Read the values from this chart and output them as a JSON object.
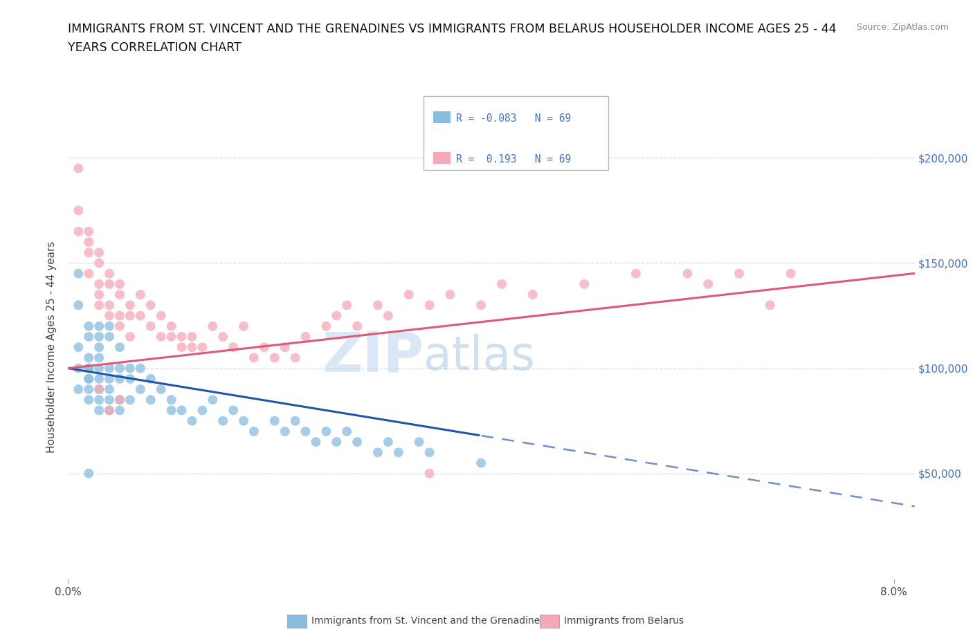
{
  "title_line1": "IMMIGRANTS FROM ST. VINCENT AND THE GRENADINES VS IMMIGRANTS FROM BELARUS HOUSEHOLDER INCOME AGES 25 - 44",
  "title_line2": "YEARS CORRELATION CHART",
  "source_text": "Source: ZipAtlas.com",
  "ylabel": "Householder Income Ages 25 - 44 years",
  "xlim": [
    0.0,
    0.082
  ],
  "ylim": [
    0,
    220000
  ],
  "x_ticks": [
    0.0,
    0.08
  ],
  "x_tick_labels": [
    "0.0%",
    "8.0%"
  ],
  "y_ticks": [
    50000,
    100000,
    150000,
    200000
  ],
  "y_tick_labels": [
    "$50,000",
    "$100,000",
    "$150,000",
    "$200,000"
  ],
  "blue_color": "#89bde0",
  "pink_color": "#f4a8b8",
  "blue_line_color": "#2255aa",
  "pink_line_color": "#e05878",
  "r_blue": -0.083,
  "r_pink": 0.193,
  "n_blue": 69,
  "n_pink": 69,
  "legend1_label": "Immigrants from St. Vincent and the Grenadines",
  "legend2_label": "Immigrants from Belarus",
  "blue_scatter_x": [
    0.001,
    0.001,
    0.001,
    0.001,
    0.001,
    0.002,
    0.002,
    0.002,
    0.002,
    0.002,
    0.002,
    0.002,
    0.002,
    0.002,
    0.003,
    0.003,
    0.003,
    0.003,
    0.003,
    0.003,
    0.003,
    0.003,
    0.003,
    0.004,
    0.004,
    0.004,
    0.004,
    0.004,
    0.004,
    0.004,
    0.005,
    0.005,
    0.005,
    0.005,
    0.005,
    0.006,
    0.006,
    0.006,
    0.007,
    0.007,
    0.008,
    0.008,
    0.009,
    0.01,
    0.01,
    0.011,
    0.012,
    0.013,
    0.014,
    0.015,
    0.016,
    0.017,
    0.018,
    0.02,
    0.021,
    0.022,
    0.023,
    0.024,
    0.025,
    0.026,
    0.027,
    0.028,
    0.03,
    0.031,
    0.032,
    0.034,
    0.035,
    0.04,
    0.002
  ],
  "blue_scatter_y": [
    145000,
    100000,
    110000,
    90000,
    130000,
    120000,
    100000,
    95000,
    115000,
    105000,
    95000,
    85000,
    100000,
    90000,
    120000,
    115000,
    110000,
    100000,
    95000,
    90000,
    85000,
    80000,
    105000,
    120000,
    115000,
    100000,
    95000,
    90000,
    85000,
    80000,
    110000,
    100000,
    95000,
    85000,
    80000,
    100000,
    95000,
    85000,
    100000,
    90000,
    95000,
    85000,
    90000,
    80000,
    85000,
    80000,
    75000,
    80000,
    85000,
    75000,
    80000,
    75000,
    70000,
    75000,
    70000,
    75000,
    70000,
    65000,
    70000,
    65000,
    70000,
    65000,
    60000,
    65000,
    60000,
    65000,
    60000,
    55000,
    50000
  ],
  "pink_scatter_x": [
    0.001,
    0.001,
    0.001,
    0.002,
    0.002,
    0.002,
    0.002,
    0.003,
    0.003,
    0.003,
    0.003,
    0.003,
    0.004,
    0.004,
    0.004,
    0.004,
    0.005,
    0.005,
    0.005,
    0.005,
    0.006,
    0.006,
    0.006,
    0.007,
    0.007,
    0.008,
    0.008,
    0.009,
    0.009,
    0.01,
    0.01,
    0.011,
    0.011,
    0.012,
    0.012,
    0.013,
    0.014,
    0.015,
    0.016,
    0.017,
    0.018,
    0.019,
    0.02,
    0.021,
    0.022,
    0.023,
    0.025,
    0.026,
    0.027,
    0.028,
    0.03,
    0.031,
    0.033,
    0.035,
    0.037,
    0.04,
    0.042,
    0.045,
    0.05,
    0.055,
    0.06,
    0.062,
    0.065,
    0.068,
    0.07,
    0.003,
    0.004,
    0.035,
    0.005
  ],
  "pink_scatter_y": [
    195000,
    175000,
    165000,
    165000,
    160000,
    155000,
    145000,
    155000,
    150000,
    140000,
    135000,
    130000,
    145000,
    140000,
    130000,
    125000,
    140000,
    135000,
    125000,
    120000,
    130000,
    125000,
    115000,
    135000,
    125000,
    130000,
    120000,
    125000,
    115000,
    120000,
    115000,
    115000,
    110000,
    110000,
    115000,
    110000,
    120000,
    115000,
    110000,
    120000,
    105000,
    110000,
    105000,
    110000,
    105000,
    115000,
    120000,
    125000,
    130000,
    120000,
    130000,
    125000,
    135000,
    130000,
    135000,
    130000,
    140000,
    135000,
    140000,
    145000,
    145000,
    140000,
    145000,
    130000,
    145000,
    90000,
    80000,
    50000,
    85000
  ]
}
